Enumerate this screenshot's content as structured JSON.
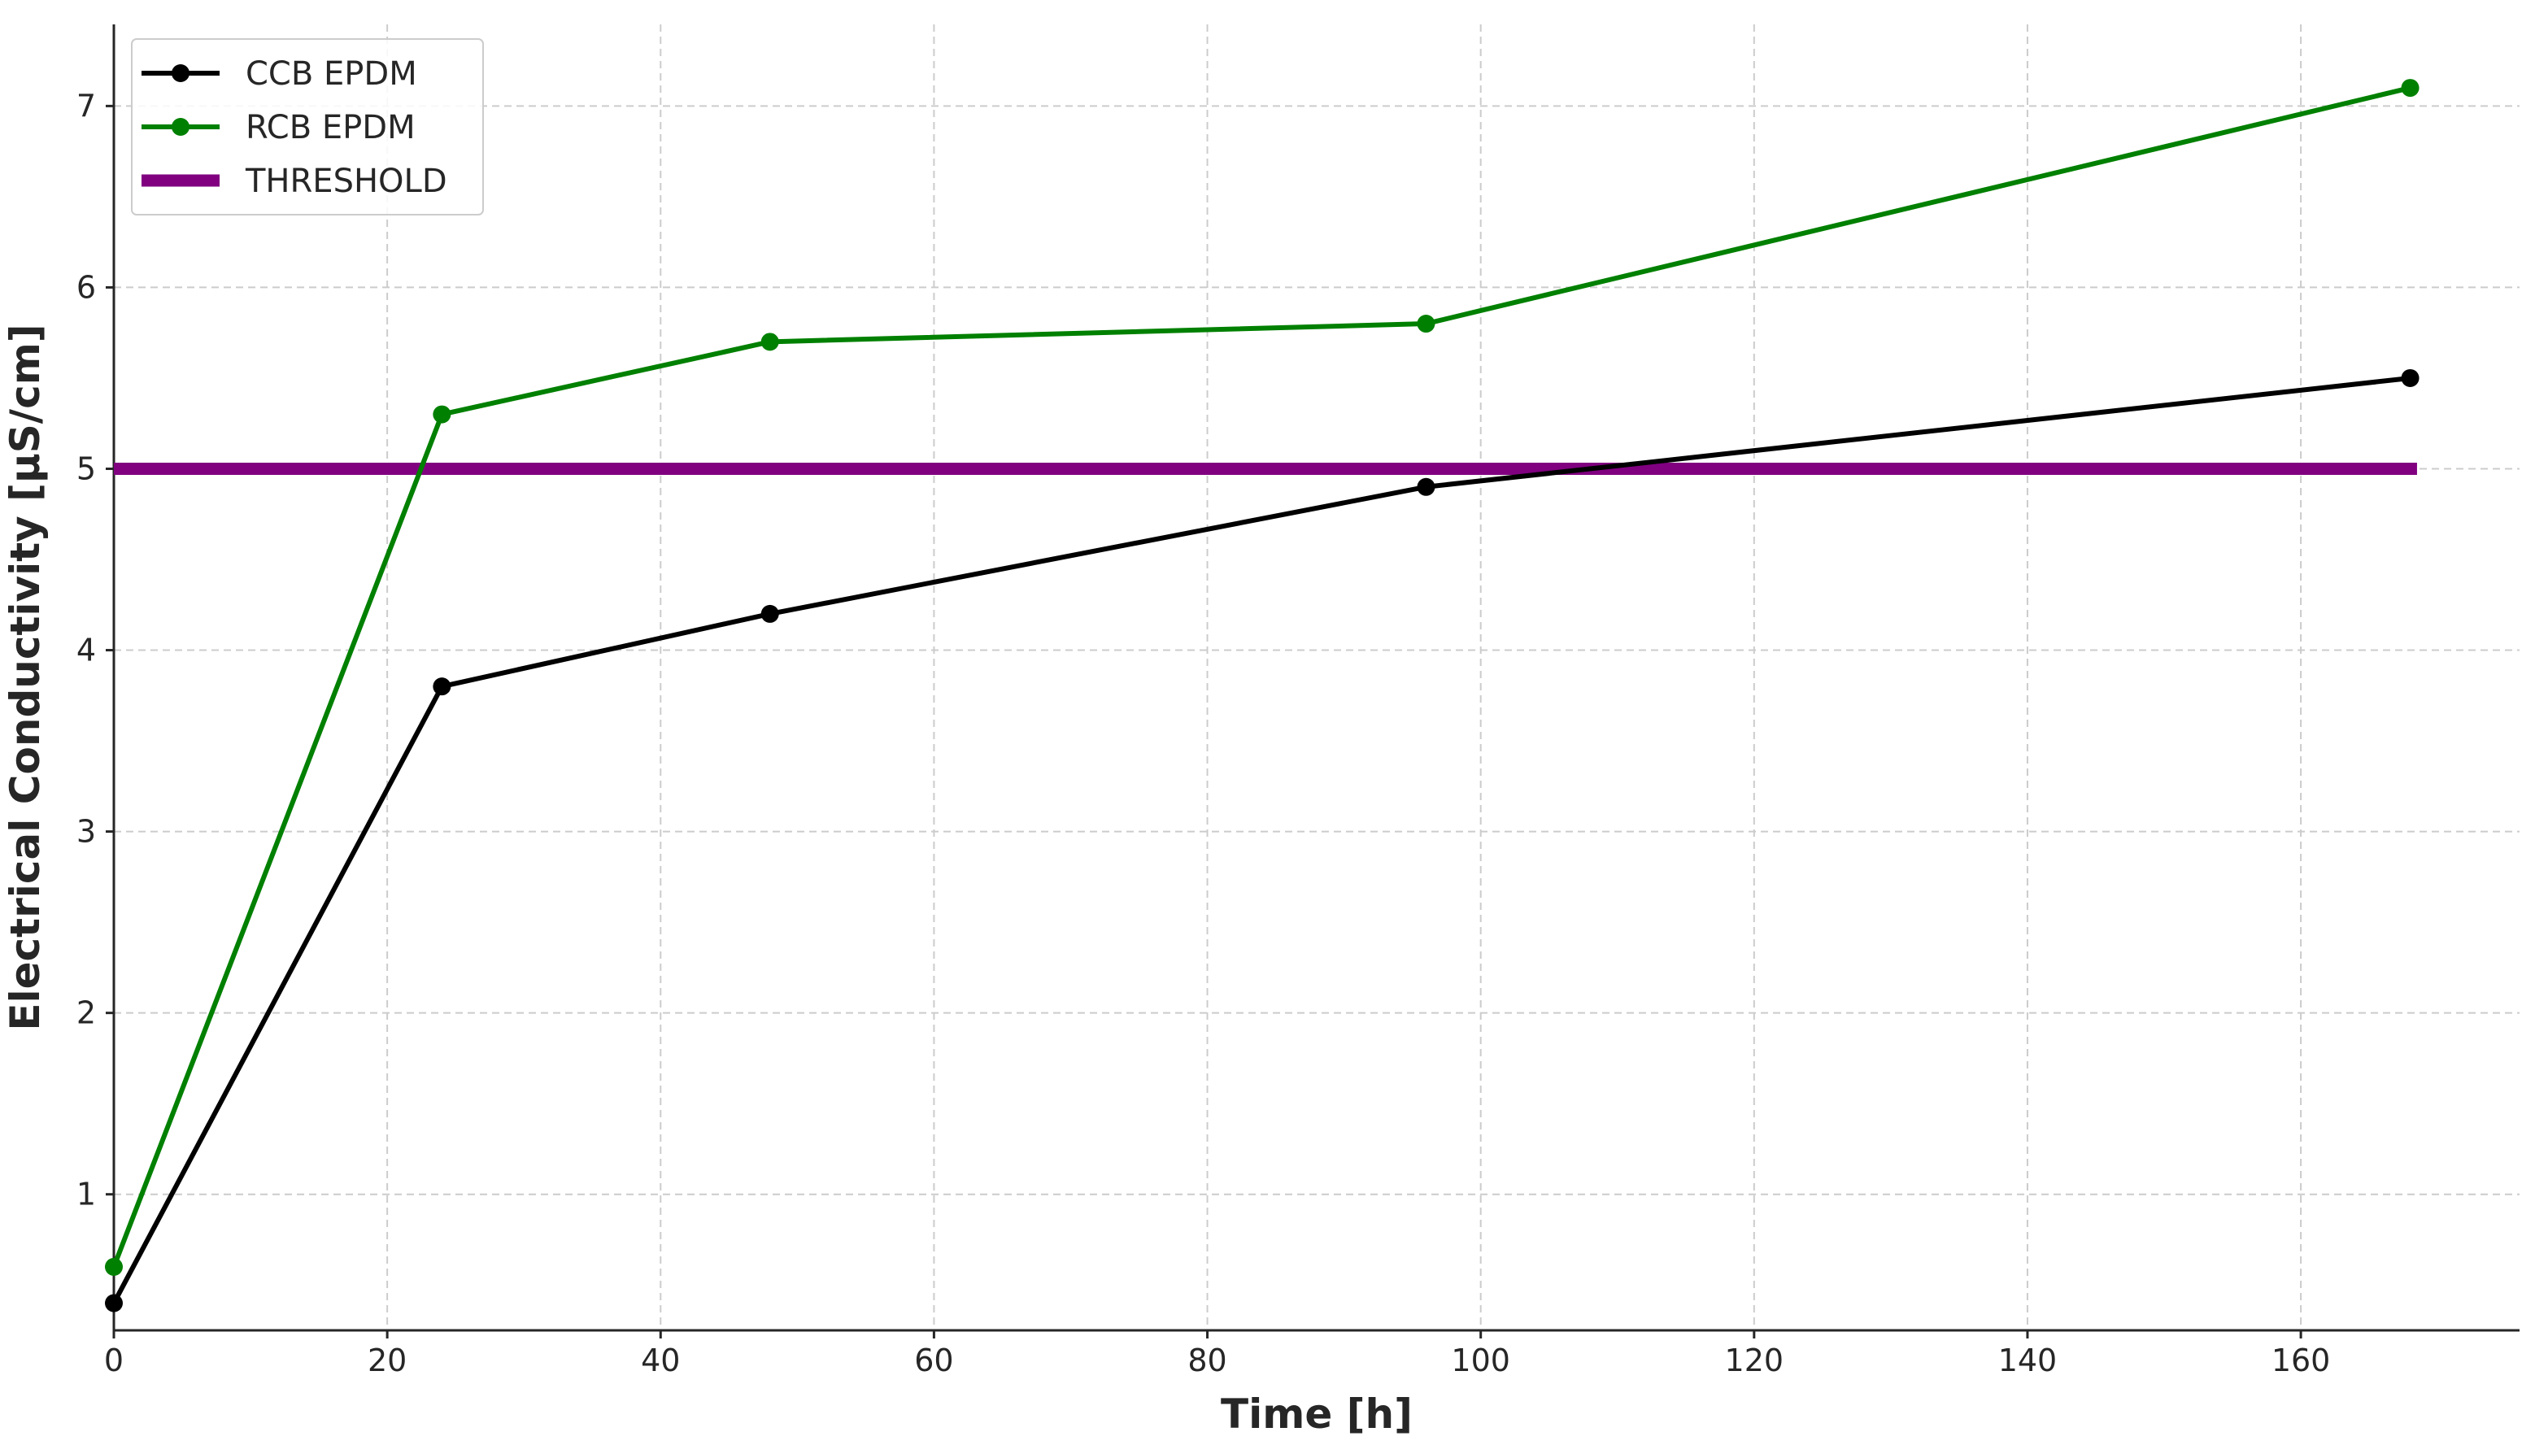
{
  "chart_data": {
    "type": "line",
    "title": "",
    "xlabel": "Time [h]",
    "ylabel": "Electrical Conductivity [µS/cm]",
    "xlim": [
      0,
      176
    ],
    "ylim": [
      0.25,
      7.45
    ],
    "xticks": [
      0,
      20,
      40,
      60,
      80,
      100,
      120,
      140,
      160
    ],
    "yticks": [
      1,
      2,
      3,
      4,
      5,
      6,
      7
    ],
    "grid": true,
    "legend_position": "top-left",
    "series": [
      {
        "name": "CCB EPDM",
        "color": "#000000",
        "marker": "circle",
        "x": [
          0,
          24,
          48,
          96,
          168
        ],
        "y": [
          0.4,
          3.8,
          4.2,
          4.9,
          5.5
        ]
      },
      {
        "name": "RCB EPDM",
        "color": "#008000",
        "marker": "circle",
        "x": [
          0,
          24,
          48,
          96,
          168
        ],
        "y": [
          0.6,
          5.3,
          5.7,
          5.8,
          7.1
        ]
      }
    ],
    "threshold": {
      "name": "THRESHOLD",
      "color": "#800080",
      "y": 5,
      "x": [
        0,
        168.5
      ]
    }
  }
}
